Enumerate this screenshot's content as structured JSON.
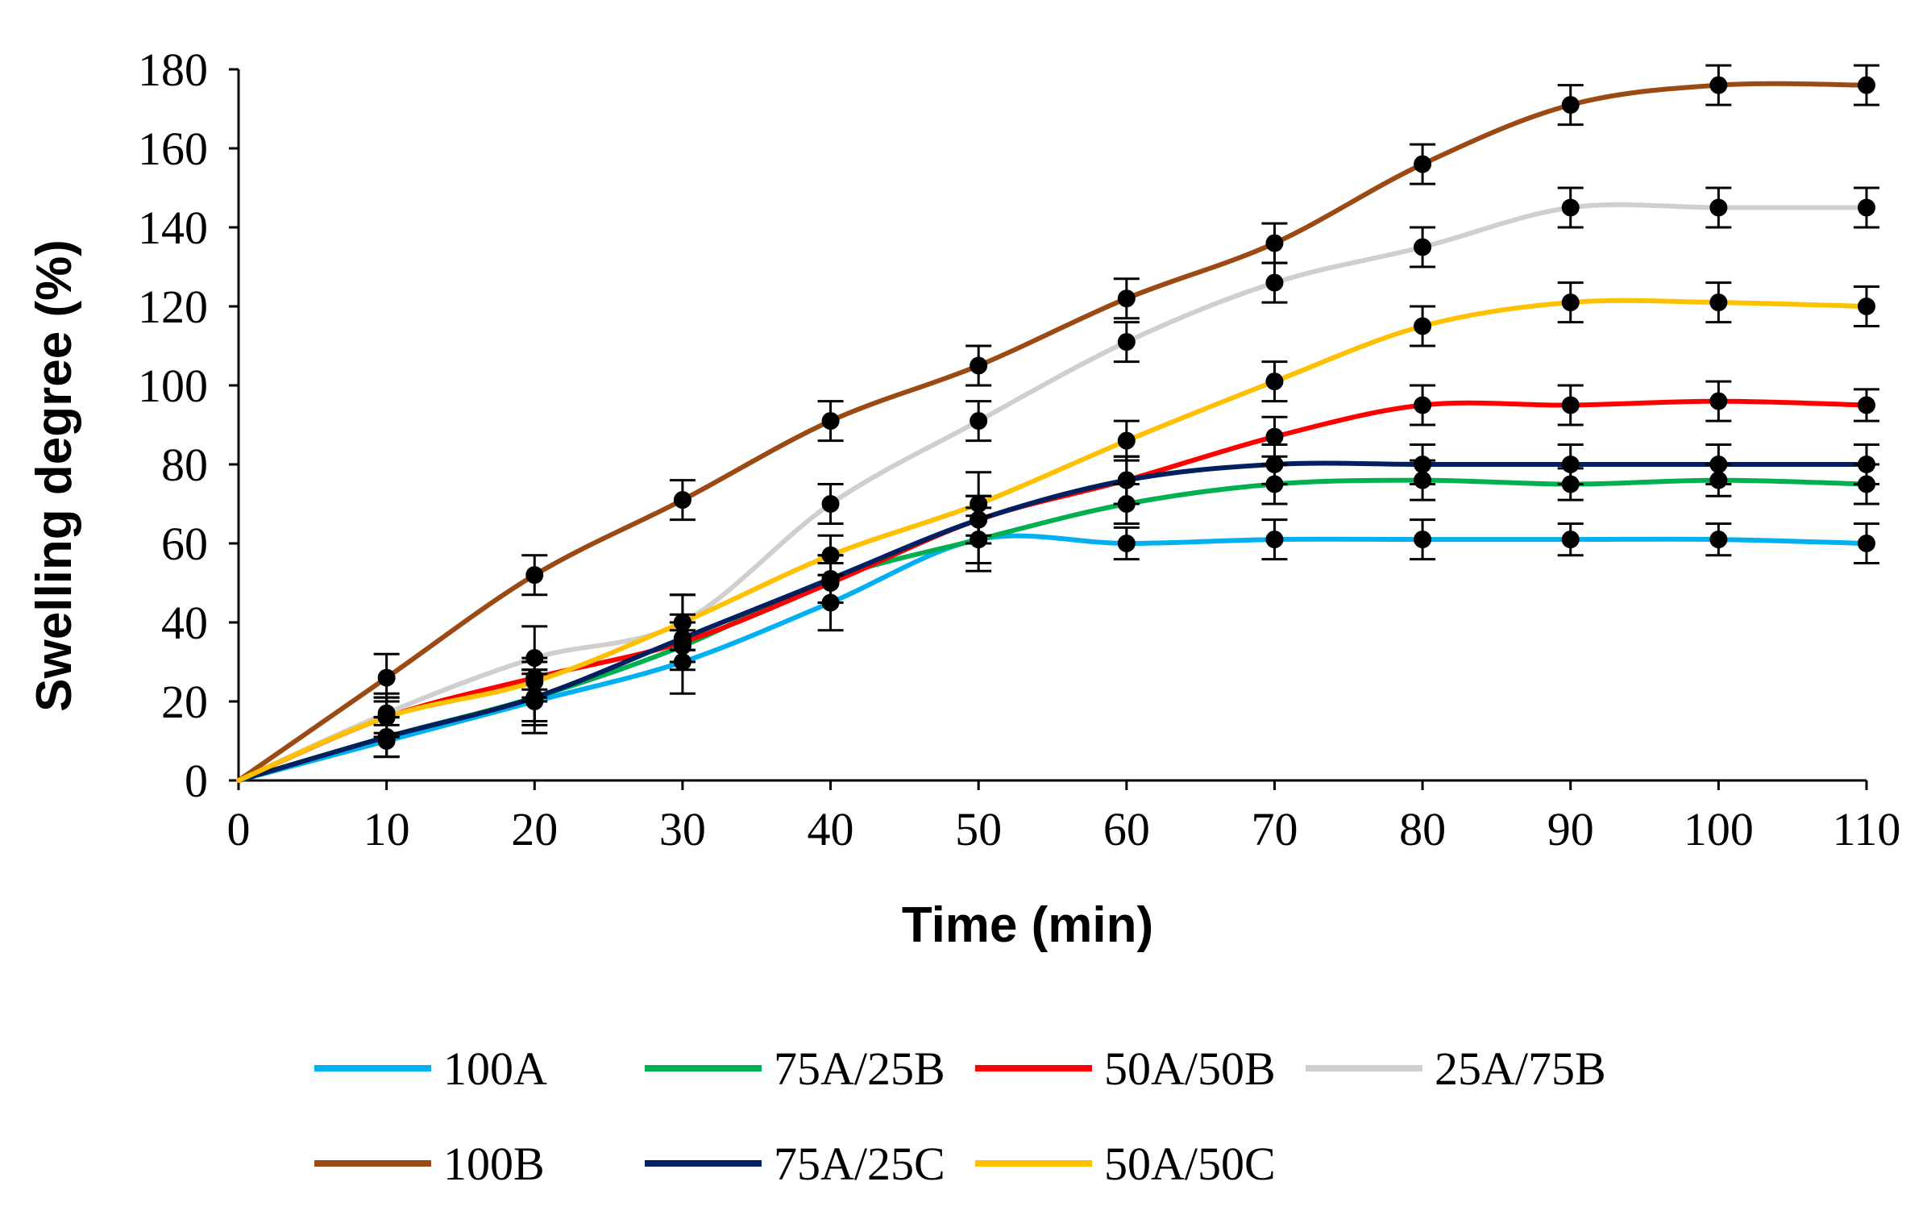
{
  "chart_data": {
    "type": "line",
    "title": "",
    "xlabel": "Time (min)",
    "ylabel": "Swelling degree (%)",
    "xlim": [
      0,
      110
    ],
    "ylim": [
      0,
      180
    ],
    "xticks": [
      0,
      10,
      20,
      30,
      40,
      50,
      60,
      70,
      80,
      90,
      100,
      110
    ],
    "yticks": [
      0,
      20,
      40,
      60,
      80,
      100,
      120,
      140,
      160,
      180
    ],
    "grid": false,
    "legend_position": "bottom",
    "x": [
      0,
      10,
      20,
      30,
      40,
      50,
      60,
      70,
      80,
      90,
      100,
      110
    ],
    "series": [
      {
        "name": "100A",
        "color": "#00b0f0",
        "values": [
          0,
          10,
          20,
          30,
          45,
          61,
          60,
          61,
          61,
          61,
          61,
          60
        ],
        "errors": [
          0,
          4,
          8,
          8,
          7,
          8,
          4,
          5,
          5,
          4,
          4,
          5
        ]
      },
      {
        "name": "75A/25B",
        "color": "#00b050",
        "values": [
          0,
          11,
          21,
          34,
          51,
          61,
          70,
          75,
          76,
          75,
          76,
          75
        ],
        "errors": [
          0,
          5,
          7,
          6,
          6,
          6,
          5,
          5,
          5,
          4,
          4,
          5
        ]
      },
      {
        "name": "50A/50B",
        "color": "#ff0000",
        "values": [
          0,
          16,
          26,
          35,
          50,
          66,
          76,
          87,
          95,
          95,
          96,
          95
        ],
        "errors": [
          0,
          5,
          5,
          5,
          5,
          6,
          6,
          5,
          5,
          5,
          5,
          4
        ]
      },
      {
        "name": "25A/75B",
        "color": "#d0cece",
        "values": [
          0,
          17,
          31,
          40,
          70,
          91,
          111,
          126,
          135,
          145,
          145,
          145
        ],
        "errors": [
          0,
          5,
          8,
          7,
          5,
          5,
          5,
          5,
          5,
          5,
          5,
          5
        ]
      },
      {
        "name": "100B",
        "color": "#9c4a14",
        "values": [
          0,
          26,
          52,
          71,
          91,
          105,
          122,
          136,
          156,
          171,
          176,
          176
        ],
        "errors": [
          0,
          6,
          5,
          5,
          5,
          5,
          5,
          5,
          5,
          5,
          5,
          5
        ]
      },
      {
        "name": "75A/25C",
        "color": "#002060",
        "values": [
          0,
          11,
          21,
          36,
          51,
          66,
          76,
          80,
          80,
          80,
          80,
          80
        ],
        "errors": [
          0,
          5,
          6,
          6,
          6,
          6,
          6,
          5,
          5,
          5,
          5,
          5
        ]
      },
      {
        "name": "50A/50C",
        "color": "#ffc000",
        "values": [
          0,
          16,
          25,
          40,
          57,
          70,
          86,
          101,
          115,
          121,
          121,
          120
        ],
        "errors": [
          0,
          5,
          5,
          7,
          5,
          8,
          5,
          5,
          5,
          5,
          5,
          5
        ]
      }
    ]
  }
}
